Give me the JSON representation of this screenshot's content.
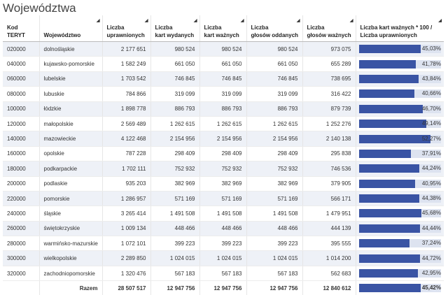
{
  "title": "Województwa",
  "headers": {
    "code": "Kod TERYT",
    "name": "Województwo",
    "eligible": [
      "Liczba",
      "uprawnionych"
    ],
    "issued": [
      "Liczba",
      "kart wydanych"
    ],
    "valid_cards": [
      "Liczba",
      "kart ważnych"
    ],
    "votes_cast": [
      "Liczba",
      "głosów oddanych"
    ],
    "valid_votes": [
      "Liczba",
      "głosów ważnych"
    ],
    "ratio": [
      "Liczba kart ważnych * 100 /",
      "Liczba uprawnionych"
    ]
  },
  "sort_glyph": "◢",
  "rows": [
    {
      "code": "020000",
      "name": "dolnośląskie",
      "eligible": "2 177 651",
      "issued": "980 524",
      "valid_cards": "980 524",
      "votes_cast": "980 524",
      "valid_votes": "973 075",
      "pct": "45,03%",
      "pct_value": 45.03
    },
    {
      "code": "040000",
      "name": "kujawsko-pomorskie",
      "eligible": "1 582 249",
      "issued": "661 050",
      "valid_cards": "661 050",
      "votes_cast": "661 050",
      "valid_votes": "655 289",
      "pct": "41,78%",
      "pct_value": 41.78
    },
    {
      "code": "060000",
      "name": "lubelskie",
      "eligible": "1 703 542",
      "issued": "746 845",
      "valid_cards": "746 845",
      "votes_cast": "746 845",
      "valid_votes": "738 695",
      "pct": "43,84%",
      "pct_value": 43.84
    },
    {
      "code": "080000",
      "name": "lubuskie",
      "eligible": "784 866",
      "issued": "319 099",
      "valid_cards": "319 099",
      "votes_cast": "319 099",
      "valid_votes": "316 422",
      "pct": "40,66%",
      "pct_value": 40.66
    },
    {
      "code": "100000",
      "name": "łódzkie",
      "eligible": "1 898 778",
      "issued": "886 793",
      "valid_cards": "886 793",
      "votes_cast": "886 793",
      "valid_votes": "879 739",
      "pct": "46,70%",
      "pct_value": 46.7
    },
    {
      "code": "120000",
      "name": "małopolskie",
      "eligible": "2 569 489",
      "issued": "1 262 615",
      "valid_cards": "1 262 615",
      "votes_cast": "1 262 615",
      "valid_votes": "1 252 276",
      "pct": "49,14%",
      "pct_value": 49.14
    },
    {
      "code": "140000",
      "name": "mazowieckie",
      "eligible": "4 122 468",
      "issued": "2 154 956",
      "valid_cards": "2 154 956",
      "votes_cast": "2 154 956",
      "valid_votes": "2 140 138",
      "pct": "52,27%",
      "pct_value": 52.27
    },
    {
      "code": "160000",
      "name": "opolskie",
      "eligible": "787 228",
      "issued": "298 409",
      "valid_cards": "298 409",
      "votes_cast": "298 409",
      "valid_votes": "295 838",
      "pct": "37,91%",
      "pct_value": 37.91
    },
    {
      "code": "180000",
      "name": "podkarpackie",
      "eligible": "1 702 111",
      "issued": "752 932",
      "valid_cards": "752 932",
      "votes_cast": "752 932",
      "valid_votes": "746 536",
      "pct": "44,24%",
      "pct_value": 44.24
    },
    {
      "code": "200000",
      "name": "podlaskie",
      "eligible": "935 203",
      "issued": "382 969",
      "valid_cards": "382 969",
      "votes_cast": "382 969",
      "valid_votes": "379 905",
      "pct": "40,95%",
      "pct_value": 40.95
    },
    {
      "code": "220000",
      "name": "pomorskie",
      "eligible": "1 286 957",
      "issued": "571 169",
      "valid_cards": "571 169",
      "votes_cast": "571 169",
      "valid_votes": "566 171",
      "pct": "44,38%",
      "pct_value": 44.38
    },
    {
      "code": "240000",
      "name": "śląskie",
      "eligible": "3 265 414",
      "issued": "1 491 508",
      "valid_cards": "1 491 508",
      "votes_cast": "1 491 508",
      "valid_votes": "1 479 951",
      "pct": "45,68%",
      "pct_value": 45.68
    },
    {
      "code": "260000",
      "name": "świętokrzyskie",
      "eligible": "1 009 134",
      "issued": "448 466",
      "valid_cards": "448 466",
      "votes_cast": "448 466",
      "valid_votes": "444 139",
      "pct": "44,44%",
      "pct_value": 44.44
    },
    {
      "code": "280000",
      "name": "warmińsko-mazurskie",
      "eligible": "1 072 101",
      "issued": "399 223",
      "valid_cards": "399 223",
      "votes_cast": "399 223",
      "valid_votes": "395 555",
      "pct": "37,24%",
      "pct_value": 37.24
    },
    {
      "code": "300000",
      "name": "wielkopolskie",
      "eligible": "2 289 850",
      "issued": "1 024 015",
      "valid_cards": "1 024 015",
      "votes_cast": "1 024 015",
      "valid_votes": "1 014 200",
      "pct": "44,72%",
      "pct_value": 44.72
    },
    {
      "code": "320000",
      "name": "zachodniopomorskie",
      "eligible": "1 320 476",
      "issued": "567 183",
      "valid_cards": "567 183",
      "votes_cast": "567 183",
      "valid_votes": "562 683",
      "pct": "42,95%",
      "pct_value": 42.95
    }
  ],
  "footer": {
    "label": "Razem",
    "eligible": "28 507 517",
    "issued": "12 947 756",
    "valid_cards": "12 947 756",
    "votes_cast": "12 947 756",
    "valid_votes": "12 840 612",
    "pct": "45,42%",
    "pct_value": 45.42
  },
  "bar_scale_max": 60,
  "colors": {
    "bar": "#3a54a4",
    "bar_track": "#dde3f0",
    "row_alt": "#eef1f7"
  }
}
